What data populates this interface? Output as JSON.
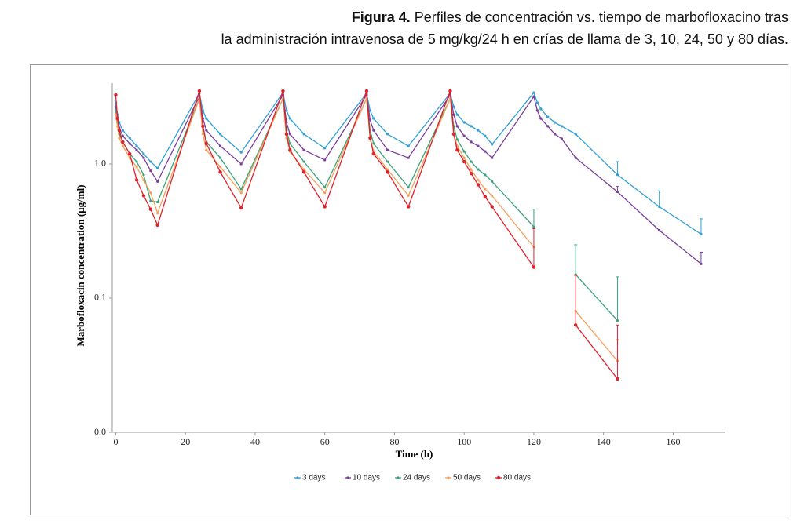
{
  "caption": {
    "label": "Figura 4.",
    "line1": "Perfiles de concentración vs. tiempo de marbofloxacino tras",
    "line2": "la administración intravenosa de 5 mg/kg/24 h en crías de llama de 3, 10, 24, 50 y 80 días."
  },
  "chart_data": {
    "type": "line",
    "log_scale_y": true,
    "legend": "bottom",
    "x_label": "Time (h)",
    "y_label": "Marbofloxacin concentration (µg/ml)",
    "xlim": [
      -1,
      175
    ],
    "xticks": [
      0,
      20,
      40,
      60,
      80,
      100,
      120,
      140,
      160
    ],
    "ylim": [
      0.01,
      4
    ],
    "yticks": [
      {
        "value": 0.01,
        "label": "0.0"
      },
      0.1,
      {
        "value": 1,
        "label": "1.0"
      }
    ],
    "x": [
      0,
      0.5,
      1,
      2,
      4,
      6,
      8,
      10,
      12,
      24,
      25,
      26,
      30,
      36,
      48,
      49,
      50,
      54,
      60,
      72,
      73,
      74,
      78,
      84,
      96,
      97,
      98,
      100,
      102,
      104,
      106,
      108,
      120,
      121,
      122,
      124,
      126,
      128,
      132,
      144,
      156,
      168
    ],
    "series": [
      {
        "name": "3 days",
        "color": "#2e9fd9",
        "values": [
          2.86,
          2.33,
          2.04,
          1.78,
          1.56,
          1.36,
          1.19,
          1.04,
          0.93,
          3.36,
          2.5,
          2.18,
          1.67,
          1.22,
          3.4,
          2.5,
          2.18,
          1.67,
          1.31,
          3.36,
          2.5,
          2.18,
          1.67,
          1.36,
          3.36,
          2.67,
          2.33,
          2.04,
          1.91,
          1.78,
          1.62,
          1.4,
          3.4,
          2.86,
          2.57,
          2.24,
          2.04,
          1.91,
          1.67,
          0.83,
          0.48,
          0.3
        ],
        "errors": [
          null,
          null,
          null,
          null,
          null,
          null,
          null,
          null,
          null,
          null,
          null,
          null,
          null,
          null,
          null,
          null,
          null,
          null,
          null,
          null,
          null,
          null,
          null,
          null,
          null,
          null,
          null,
          null,
          null,
          null,
          null,
          null,
          null,
          null,
          null,
          null,
          null,
          null,
          null,
          0.21,
          0.15,
          0.09
        ]
      },
      {
        "name": "10 days",
        "color": "#7a3e9d",
        "values": [
          2.67,
          2.18,
          1.86,
          1.62,
          1.42,
          1.27,
          1.11,
          0.89,
          0.74,
          3.18,
          2.18,
          1.78,
          1.36,
          1.0,
          3.27,
          2.04,
          1.67,
          1.27,
          1.07,
          3.27,
          2.13,
          1.78,
          1.27,
          1.11,
          3.27,
          2.33,
          1.91,
          1.62,
          1.46,
          1.36,
          1.24,
          1.11,
          3.18,
          2.5,
          2.18,
          1.91,
          1.67,
          1.54,
          1.11,
          0.62,
          0.32,
          0.18
        ],
        "errors": [
          null,
          null,
          null,
          null,
          null,
          null,
          null,
          null,
          null,
          null,
          null,
          null,
          null,
          null,
          null,
          null,
          null,
          null,
          null,
          null,
          null,
          null,
          null,
          null,
          null,
          null,
          null,
          null,
          null,
          null,
          null,
          null,
          null,
          null,
          null,
          null,
          null,
          null,
          null,
          0.06,
          null,
          0.04
        ]
      },
      {
        "name": "24 days",
        "color": "#3aa37a",
        "values": [
          2.5,
          2.04,
          1.67,
          1.46,
          1.19,
          1.04,
          0.83,
          0.53,
          0.52,
          3.06,
          1.91,
          1.46,
          1.11,
          0.65,
          3.06,
          1.78,
          1.42,
          1.04,
          0.67,
          3.06,
          1.78,
          1.42,
          1.04,
          0.67,
          3.06,
          1.91,
          1.52,
          1.24,
          1.04,
          0.91,
          0.83,
          0.74,
          0.34,
          null,
          null,
          null,
          null,
          null,
          0.15,
          0.068,
          null,
          null
        ],
        "errors": [
          null,
          null,
          null,
          null,
          null,
          null,
          null,
          null,
          null,
          null,
          null,
          null,
          null,
          null,
          null,
          null,
          null,
          null,
          null,
          null,
          null,
          null,
          null,
          null,
          null,
          null,
          null,
          null,
          null,
          null,
          null,
          null,
          0.12,
          null,
          null,
          null,
          null,
          null,
          0.1,
          0.076,
          null,
          null
        ]
      },
      {
        "name": "50 days",
        "color": "#f5a05a",
        "values": [
          2.33,
          1.91,
          1.56,
          1.36,
          1.11,
          0.95,
          0.76,
          0.61,
          0.43,
          3.06,
          1.67,
          1.27,
          0.95,
          0.61,
          3.06,
          1.56,
          1.24,
          0.91,
          0.61,
          3.06,
          1.56,
          1.24,
          0.91,
          0.58,
          3.06,
          1.67,
          1.36,
          1.11,
          0.91,
          0.76,
          0.65,
          0.58,
          0.24,
          null,
          null,
          null,
          null,
          null,
          0.08,
          0.034,
          null,
          null
        ],
        "errors": [
          null,
          null,
          null,
          null,
          null,
          null,
          null,
          null,
          null,
          null,
          null,
          null,
          null,
          null,
          null,
          null,
          null,
          null,
          null,
          null,
          null,
          null,
          null,
          null,
          null,
          null,
          null,
          null,
          null,
          null,
          null,
          null,
          null,
          null,
          null,
          null,
          null,
          null,
          null,
          0.015,
          null,
          null
        ]
      },
      {
        "name": "80 days",
        "color": "#e0202a",
        "values": [
          3.27,
          2.18,
          1.78,
          1.46,
          1.19,
          0.76,
          0.58,
          0.46,
          0.35,
          3.5,
          1.91,
          1.42,
          0.87,
          0.47,
          3.5,
          1.67,
          1.27,
          0.87,
          0.48,
          3.5,
          1.56,
          1.19,
          0.87,
          0.48,
          3.5,
          1.67,
          1.27,
          1.04,
          0.85,
          0.7,
          0.57,
          0.48,
          0.17,
          null,
          null,
          null,
          null,
          null,
          0.063,
          0.025,
          null,
          null
        ],
        "errors": [
          null,
          null,
          null,
          null,
          null,
          null,
          null,
          null,
          null,
          null,
          null,
          null,
          null,
          null,
          null,
          null,
          null,
          null,
          null,
          null,
          null,
          null,
          null,
          null,
          null,
          null,
          null,
          null,
          null,
          null,
          null,
          null,
          0.16,
          null,
          null,
          null,
          null,
          null,
          0.085,
          0.038,
          null,
          null
        ]
      }
    ]
  }
}
